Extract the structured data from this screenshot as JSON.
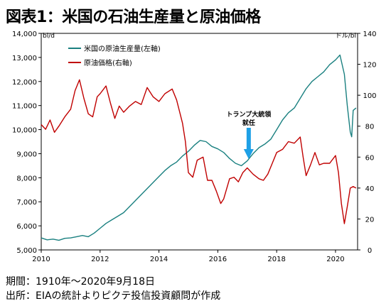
{
  "title": "図表1：米国の石油生産量と原油価格",
  "footer": {
    "period": "期間：1910年～2020年9月18日",
    "source": "出所：EIAの統計よりピクテ投信投資顧問が作成"
  },
  "chart_data": {
    "type": "line",
    "y_left_unit": "bl/d",
    "y_right_unit": "ドル/bl",
    "ylim_left": [
      5000,
      14000
    ],
    "ylim_right": [
      0,
      140
    ],
    "xlim": [
      2010,
      2020.75
    ],
    "x_ticks": [
      "2010",
      "2012",
      "2014",
      "2016",
      "2018",
      "2020"
    ],
    "y_left_ticks": [
      "5,000",
      "6,000",
      "7,000",
      "8,000",
      "9,000",
      "10,000",
      "11,000",
      "12,000",
      "13,000",
      "14,000"
    ],
    "y_right_ticks": [
      "0",
      "20",
      "40",
      "60",
      "80",
      "100",
      "120",
      "140"
    ],
    "grid": false,
    "legend_position": "top-left",
    "annotation": {
      "text_line1": "トランプ大統領",
      "text_line2": "就任",
      "x": 2017.05,
      "color": "#1ea0e6"
    },
    "series": [
      {
        "name": "米国の原油生産量(左軸)",
        "axis": "left",
        "color": "#1a8080",
        "points": [
          [
            2010.0,
            5500
          ],
          [
            2010.2,
            5420
          ],
          [
            2010.4,
            5450
          ],
          [
            2010.6,
            5400
          ],
          [
            2010.8,
            5480
          ],
          [
            2011.0,
            5500
          ],
          [
            2011.2,
            5550
          ],
          [
            2011.4,
            5600
          ],
          [
            2011.6,
            5550
          ],
          [
            2011.8,
            5700
          ],
          [
            2012.0,
            5900
          ],
          [
            2012.2,
            6100
          ],
          [
            2012.4,
            6250
          ],
          [
            2012.6,
            6400
          ],
          [
            2012.8,
            6550
          ],
          [
            2013.0,
            6800
          ],
          [
            2013.2,
            7050
          ],
          [
            2013.4,
            7300
          ],
          [
            2013.6,
            7550
          ],
          [
            2013.8,
            7800
          ],
          [
            2014.0,
            8050
          ],
          [
            2014.2,
            8300
          ],
          [
            2014.4,
            8500
          ],
          [
            2014.6,
            8650
          ],
          [
            2014.8,
            8900
          ],
          [
            2015.0,
            9100
          ],
          [
            2015.2,
            9350
          ],
          [
            2015.4,
            9550
          ],
          [
            2015.6,
            9500
          ],
          [
            2015.8,
            9300
          ],
          [
            2016.0,
            9200
          ],
          [
            2016.2,
            9050
          ],
          [
            2016.4,
            8800
          ],
          [
            2016.6,
            8600
          ],
          [
            2016.8,
            8500
          ],
          [
            2017.0,
            8700
          ],
          [
            2017.2,
            9000
          ],
          [
            2017.4,
            9250
          ],
          [
            2017.6,
            9400
          ],
          [
            2017.8,
            9600
          ],
          [
            2018.0,
            10000
          ],
          [
            2018.2,
            10400
          ],
          [
            2018.4,
            10700
          ],
          [
            2018.6,
            10900
          ],
          [
            2018.8,
            11300
          ],
          [
            2019.0,
            11700
          ],
          [
            2019.2,
            12000
          ],
          [
            2019.4,
            12200
          ],
          [
            2019.6,
            12400
          ],
          [
            2019.8,
            12700
          ],
          [
            2020.0,
            12900
          ],
          [
            2020.15,
            13100
          ],
          [
            2020.3,
            12300
          ],
          [
            2020.4,
            11000
          ],
          [
            2020.5,
            9900
          ],
          [
            2020.55,
            9700
          ],
          [
            2020.6,
            10800
          ],
          [
            2020.7,
            10900
          ]
        ]
      },
      {
        "name": "原油価格(右軸)",
        "axis": "right",
        "color": "#c00000",
        "points": [
          [
            2010.0,
            81
          ],
          [
            2010.15,
            78
          ],
          [
            2010.3,
            84
          ],
          [
            2010.45,
            76
          ],
          [
            2010.6,
            80
          ],
          [
            2010.8,
            86
          ],
          [
            2011.0,
            91
          ],
          [
            2011.15,
            103
          ],
          [
            2011.3,
            110
          ],
          [
            2011.45,
            98
          ],
          [
            2011.6,
            88
          ],
          [
            2011.75,
            86
          ],
          [
            2011.9,
            99
          ],
          [
            2012.0,
            101
          ],
          [
            2012.2,
            106
          ],
          [
            2012.35,
            95
          ],
          [
            2012.5,
            85
          ],
          [
            2012.65,
            93
          ],
          [
            2012.8,
            89
          ],
          [
            2013.0,
            93
          ],
          [
            2013.2,
            96
          ],
          [
            2013.4,
            94
          ],
          [
            2013.6,
            105
          ],
          [
            2013.8,
            99
          ],
          [
            2014.0,
            96
          ],
          [
            2014.2,
            101
          ],
          [
            2014.45,
            104
          ],
          [
            2014.6,
            97
          ],
          [
            2014.8,
            82
          ],
          [
            2014.9,
            70
          ],
          [
            2015.0,
            50
          ],
          [
            2015.15,
            47
          ],
          [
            2015.3,
            58
          ],
          [
            2015.5,
            60
          ],
          [
            2015.65,
            45
          ],
          [
            2015.8,
            45
          ],
          [
            2015.95,
            38
          ],
          [
            2016.1,
            30
          ],
          [
            2016.2,
            33
          ],
          [
            2016.4,
            46
          ],
          [
            2016.55,
            47
          ],
          [
            2016.7,
            44
          ],
          [
            2016.85,
            50
          ],
          [
            2017.0,
            53
          ],
          [
            2017.2,
            49
          ],
          [
            2017.4,
            46
          ],
          [
            2017.55,
            45
          ],
          [
            2017.7,
            49
          ],
          [
            2017.85,
            56
          ],
          [
            2018.0,
            63
          ],
          [
            2018.2,
            65
          ],
          [
            2018.4,
            70
          ],
          [
            2018.6,
            69
          ],
          [
            2018.8,
            73
          ],
          [
            2018.9,
            60
          ],
          [
            2019.0,
            48
          ],
          [
            2019.15,
            55
          ],
          [
            2019.3,
            63
          ],
          [
            2019.45,
            55
          ],
          [
            2019.6,
            56
          ],
          [
            2019.8,
            56
          ],
          [
            2020.0,
            61
          ],
          [
            2020.1,
            50
          ],
          [
            2020.2,
            30
          ],
          [
            2020.3,
            17
          ],
          [
            2020.4,
            28
          ],
          [
            2020.5,
            40
          ],
          [
            2020.6,
            41
          ],
          [
            2020.7,
            40
          ]
        ]
      }
    ]
  }
}
